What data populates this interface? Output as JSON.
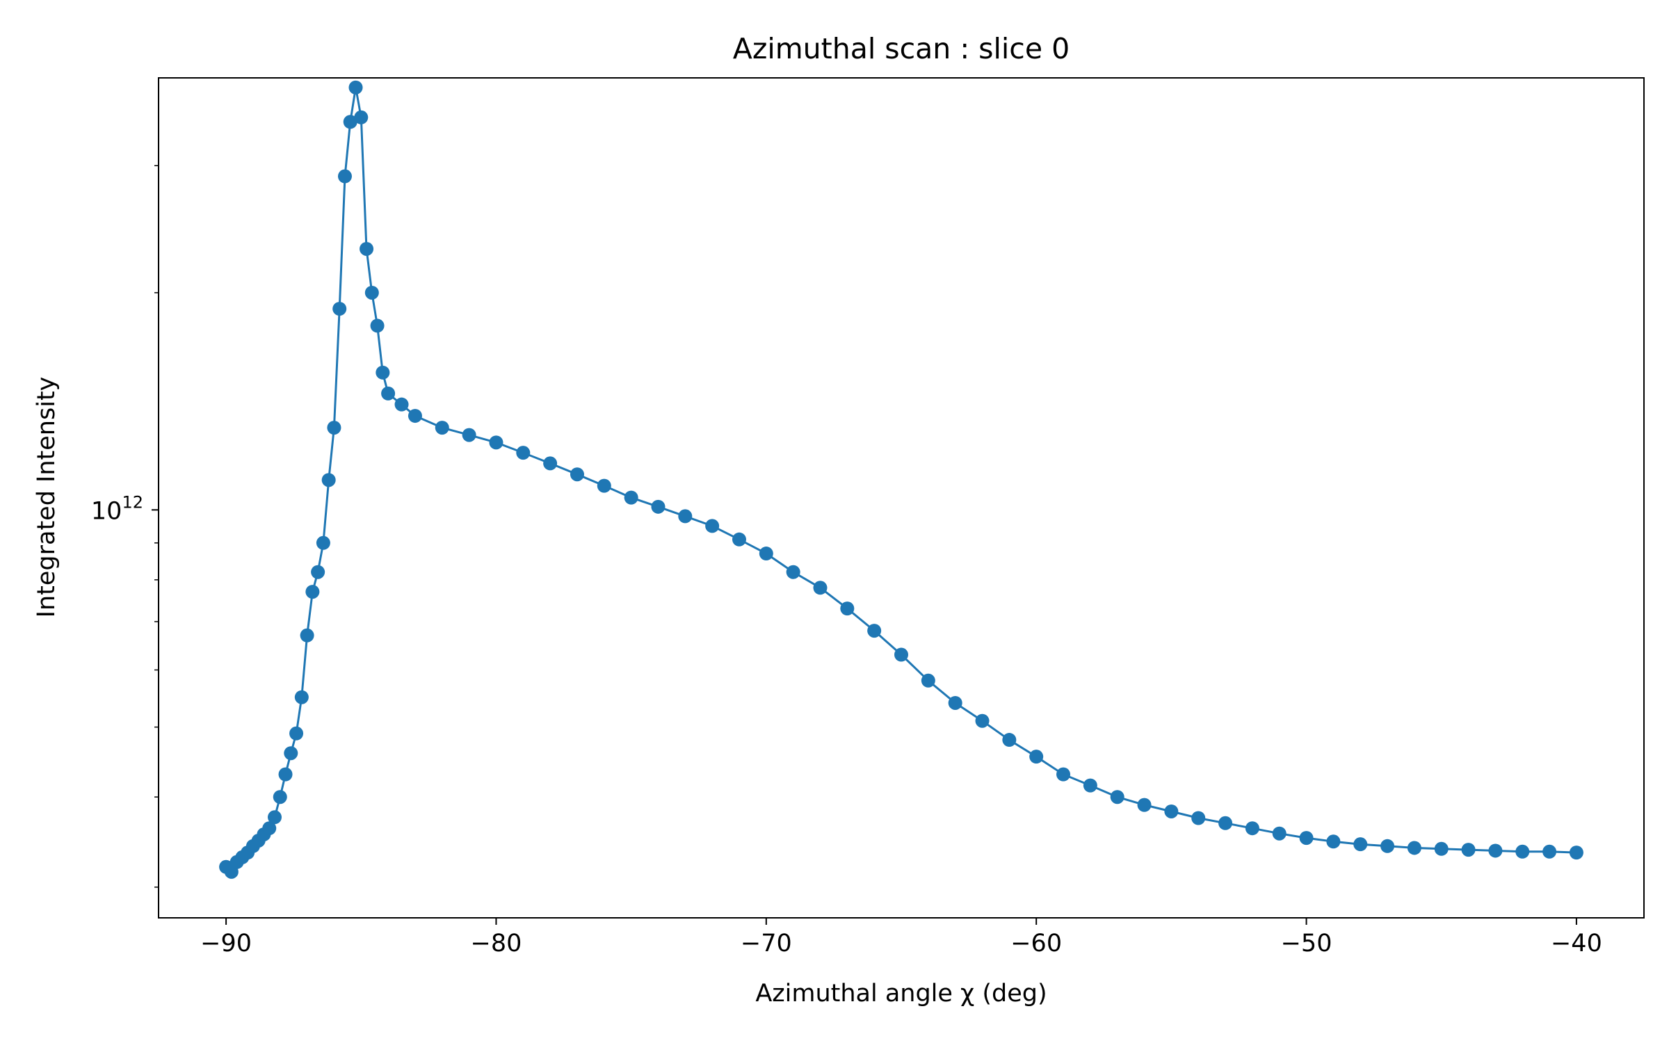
{
  "chart_data": {
    "type": "line",
    "title": "Azimuthal scan : slice 0",
    "xlabel": "Azimuthal angle χ (deg)",
    "ylabel": "Integrated Intensity",
    "xlim": [
      -92.5,
      -37.5
    ],
    "ylim": [
      272000000000.0,
      3970000000000.0
    ],
    "yscale": "log",
    "x_ticks": [
      -90,
      -80,
      -70,
      -60,
      -50,
      -40
    ],
    "x_tick_labels": [
      "−90",
      "−80",
      "−70",
      "−60",
      "−50",
      "−40"
    ],
    "y_major_tick": {
      "value": 1000000000000.0,
      "base": "10",
      "exponent": "12"
    },
    "y_minor_ticks": [
      300000000000.0,
      400000000000.0,
      500000000000.0,
      600000000000.0,
      700000000000.0,
      800000000000.0,
      900000000000.0,
      2000000000000.0,
      3000000000000.0
    ],
    "grid": false,
    "legend": "none",
    "marker": "circle",
    "color": "#1f77b4",
    "series": [
      {
        "x": [
          -90.0,
          -89.8,
          -89.6,
          -89.4,
          -89.2,
          -89.0,
          -88.8,
          -88.6,
          -88.4,
          -88.2,
          -88.0,
          -87.8,
          -87.6,
          -87.4,
          -87.2,
          -87.0,
          -86.8,
          -86.6,
          -86.4,
          -86.2,
          -86.0,
          -85.8,
          -85.6,
          -85.4,
          -85.2,
          -85.0,
          -84.8,
          -84.6,
          -84.4,
          -84.2,
          -84.0,
          -83.5,
          -83.0,
          -82.0,
          -81.0,
          -80.0,
          -79.0,
          -78.0,
          -77.0,
          -76.0,
          -75.0,
          -74.0,
          -73.0,
          -72.0,
          -71.0,
          -70.0,
          -69.0,
          -68.0,
          -67.0,
          -66.0,
          -65.0,
          -64.0,
          -63.0,
          -62.0,
          -61.0,
          -60.0,
          -59.0,
          -58.0,
          -57.0,
          -56.0,
          -55.0,
          -54.0,
          -53.0,
          -52.0,
          -51.0,
          -50.0,
          -49.0,
          -48.0,
          -47.0,
          -46.0,
          -45.0,
          -44.0,
          -43.0,
          -42.0,
          -41.0,
          -40.0
        ],
        "y": [
          320000000000.0,
          315000000000.0,
          325000000000.0,
          330000000000.0,
          335000000000.0,
          342000000000.0,
          348000000000.0,
          355000000000.0,
          362000000000.0,
          375000000000.0,
          400000000000.0,
          430000000000.0,
          460000000000.0,
          490000000000.0,
          550000000000.0,
          670000000000.0,
          770000000000.0,
          820000000000.0,
          900000000000.0,
          1100000000000.0,
          1300000000000.0,
          1900000000000.0,
          2900000000000.0,
          3450000000000.0,
          3850000000000.0,
          3500000000000.0,
          2300000000000.0,
          2000000000000.0,
          1800000000000.0,
          1550000000000.0,
          1450000000000.0,
          1400000000000.0,
          1350000000000.0,
          1300000000000.0,
          1270000000000.0,
          1240000000000.0,
          1200000000000.0,
          1160000000000.0,
          1120000000000.0,
          1080000000000.0,
          1040000000000.0,
          1010000000000.0,
          980000000000.0,
          950000000000.0,
          910000000000.0,
          870000000000.0,
          820000000000.0,
          780000000000.0,
          730000000000.0,
          680000000000.0,
          630000000000.0,
          580000000000.0,
          540000000000.0,
          510000000000.0,
          480000000000.0,
          455000000000.0,
          430000000000.0,
          415000000000.0,
          400000000000.0,
          390000000000.0,
          382000000000.0,
          374000000000.0,
          368000000000.0,
          362000000000.0,
          356000000000.0,
          351000000000.0,
          347000000000.0,
          344000000000.0,
          342000000000.0,
          340000000000.0,
          339000000000.0,
          338000000000.0,
          337000000000.0,
          336000000000.0,
          336000000000.0,
          335000000000.0
        ]
      }
    ]
  }
}
